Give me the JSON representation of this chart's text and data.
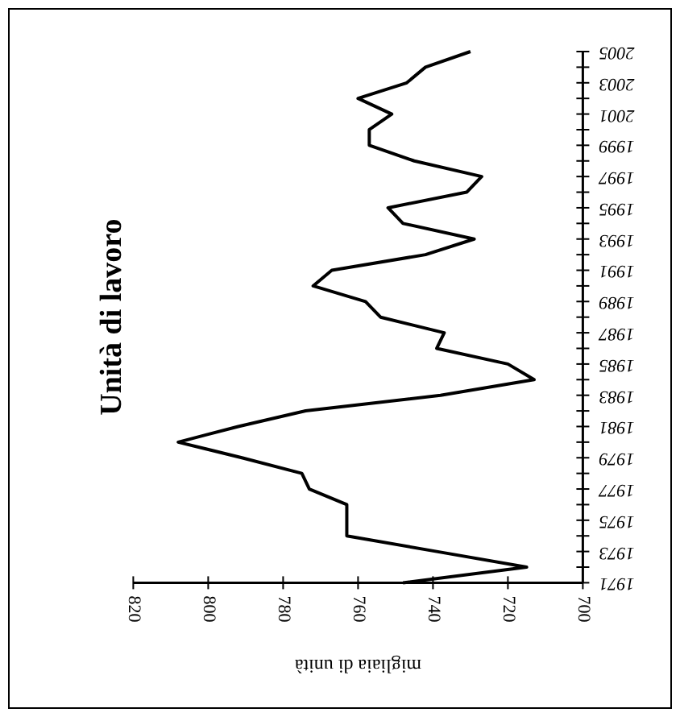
{
  "chart_data": {
    "type": "line",
    "title": "Unità di lavoro",
    "xlabel": "migliaia di unità",
    "series": [
      {
        "color": "#000000",
        "x": [
          748,
          715,
          739,
          763,
          763,
          763,
          773,
          775,
          791,
          808,
          792,
          774,
          738,
          713,
          720,
          739,
          737,
          754,
          758,
          772,
          767,
          742,
          729,
          748,
          752,
          731,
          727,
          745,
          757,
          757,
          751,
          760,
          747,
          742,
          730
        ],
        "values": [
          1971,
          1972,
          1973,
          1974,
          1975,
          1976,
          1977,
          1978,
          1979,
          1980,
          1981,
          1982,
          1983,
          1984,
          1985,
          1986,
          1987,
          1988,
          1989,
          1990,
          1991,
          1992,
          1993,
          1994,
          1995,
          1996,
          1997,
          1998,
          1999,
          2000,
          2001,
          2002,
          2003,
          2004,
          2005
        ]
      }
    ],
    "ylim": [
      1971,
      2005
    ],
    "yticks": [
      1971,
      {
        "value": 1972,
        "label": null
      },
      1973,
      {
        "value": 1974,
        "label": null
      },
      1975,
      {
        "value": 1976,
        "label": null
      },
      1977,
      {
        "value": 1978,
        "label": null
      },
      1979,
      {
        "value": 1980,
        "label": null
      },
      1981,
      {
        "value": 1982,
        "label": null
      },
      1983,
      {
        "value": 1984,
        "label": null
      },
      1985,
      {
        "value": 1986,
        "label": null
      },
      1987,
      {
        "value": 1988,
        "label": null
      },
      1989,
      {
        "value": 1990,
        "label": null
      },
      1991,
      {
        "value": 1992,
        "label": null
      },
      1993,
      {
        "value": 1994,
        "label": null
      },
      1995,
      {
        "value": 1996,
        "label": null
      },
      1997,
      {
        "value": 1998,
        "label": null
      },
      1999,
      {
        "value": 2000,
        "label": null
      },
      2001,
      {
        "value": 2002,
        "label": null
      },
      2003,
      {
        "value": 2004,
        "label": null
      },
      2005
    ],
    "xlim": [
      820,
      700
    ],
    "xticks": [
      820,
      800,
      780,
      760,
      740,
      720,
      700
    ],
    "grid": false,
    "marker": "none",
    "line_style": "solid"
  }
}
